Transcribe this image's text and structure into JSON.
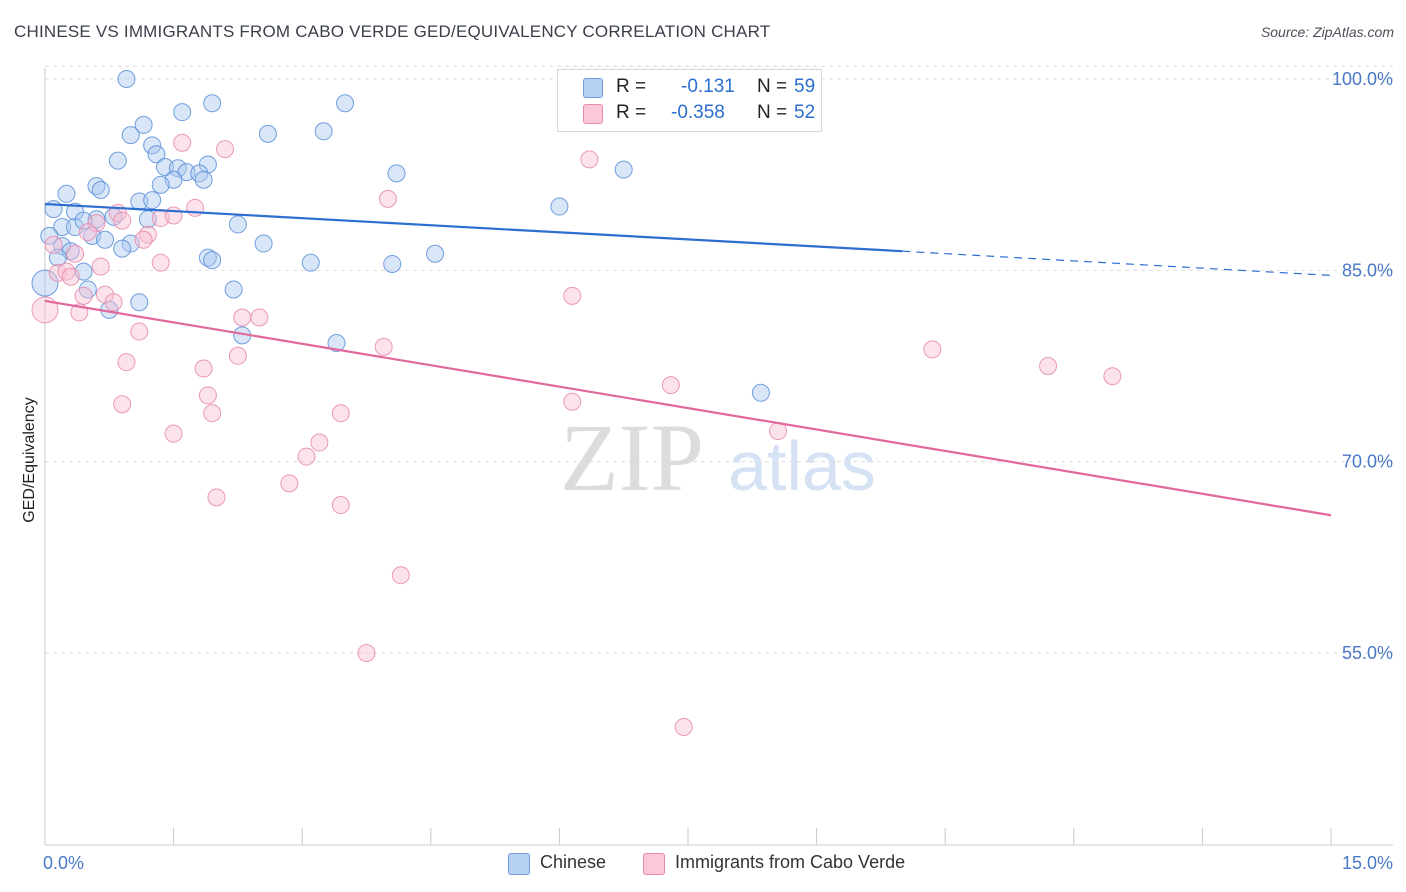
{
  "header": {
    "title": "CHINESE VS IMMIGRANTS FROM CABO VERDE GED/EQUIVALENCY CORRELATION CHART",
    "source": "Source: ZipAtlas.com"
  },
  "legend": {
    "r_label": "R =",
    "n_label": "N =",
    "series": [
      {
        "name": "Chinese",
        "r": "-0.131",
        "n": "59"
      },
      {
        "name": "Immigrants from Cabo Verde",
        "r": "-0.358",
        "n": "52"
      }
    ]
  },
  "watermark": {
    "zip": "ZIP",
    "atlas": "atlas"
  },
  "colors": {
    "blue_fill": "#a9c8f0",
    "blue_stroke": "#5b8fd8",
    "blue_line": "#2d6fd0",
    "pink_fill": "#f7bfd2",
    "pink_stroke": "#e88aab",
    "pink_line": "#e0689a",
    "axis_text": "#4a78c8"
  },
  "chart_data": {
    "type": "scatter",
    "title": "CHINESE VS IMMIGRANTS FROM CABO VERDE GED/EQUIVALENCY CORRELATION CHART",
    "xlabel": "",
    "ylabel": "GED/Equivalency",
    "xlim": [
      0,
      15
    ],
    "ylim": [
      40,
      101
    ],
    "x_ticks": [
      0,
      1.5,
      3,
      4.5,
      6,
      7.5,
      9,
      10.5,
      12,
      13.5,
      15
    ],
    "x_tick_labels": {
      "0": "0.0%",
      "15": "15.0%"
    },
    "y_ticks": [
      55,
      70,
      85,
      100
    ],
    "y_tick_labels": [
      "55.0%",
      "70.0%",
      "85.0%",
      "100.0%"
    ],
    "grid": true,
    "series": [
      {
        "name": "Chinese",
        "color": "blue",
        "points": [
          [
            0.95,
            100.0
          ],
          [
            1.95,
            98.1
          ],
          [
            3.5,
            98.1
          ],
          [
            1.6,
            97.4
          ],
          [
            1.15,
            96.4
          ],
          [
            2.6,
            95.7
          ],
          [
            3.25,
            95.9
          ],
          [
            1.0,
            95.6
          ],
          [
            1.25,
            94.8
          ],
          [
            1.3,
            94.1
          ],
          [
            0.85,
            93.6
          ],
          [
            1.9,
            93.3
          ],
          [
            1.4,
            93.1
          ],
          [
            1.55,
            93.0
          ],
          [
            1.65,
            92.7
          ],
          [
            1.8,
            92.6
          ],
          [
            4.1,
            92.6
          ],
          [
            6.75,
            92.9
          ],
          [
            1.5,
            92.1
          ],
          [
            1.85,
            92.1
          ],
          [
            1.35,
            91.7
          ],
          [
            0.6,
            91.6
          ],
          [
            0.65,
            91.3
          ],
          [
            0.25,
            91.0
          ],
          [
            1.1,
            90.4
          ],
          [
            6.0,
            90.0
          ],
          [
            0.1,
            89.8
          ],
          [
            0.35,
            89.6
          ],
          [
            0.6,
            89.0
          ],
          [
            0.8,
            89.2
          ],
          [
            1.2,
            89.0
          ],
          [
            2.25,
            88.6
          ],
          [
            0.2,
            88.4
          ],
          [
            0.35,
            88.4
          ],
          [
            0.05,
            87.7
          ],
          [
            0.55,
            87.7
          ],
          [
            0.7,
            87.4
          ],
          [
            0.2,
            86.9
          ],
          [
            1.0,
            87.1
          ],
          [
            2.55,
            87.1
          ],
          [
            0.3,
            86.5
          ],
          [
            0.9,
            86.7
          ],
          [
            4.55,
            86.3
          ],
          [
            1.9,
            86.0
          ],
          [
            1.95,
            85.8
          ],
          [
            3.1,
            85.6
          ],
          [
            4.05,
            85.5
          ],
          [
            0.45,
            84.9
          ],
          [
            0.0,
            84.0
          ],
          [
            0.5,
            83.5
          ],
          [
            2.2,
            83.5
          ],
          [
            1.1,
            82.5
          ],
          [
            0.75,
            81.9
          ],
          [
            2.3,
            79.9
          ],
          [
            3.4,
            79.3
          ],
          [
            8.35,
            75.4
          ],
          [
            0.15,
            86.0
          ],
          [
            1.25,
            90.5
          ],
          [
            0.45,
            88.9
          ]
        ]
      },
      {
        "name": "Immigrants from Cabo Verde",
        "color": "pink",
        "points": [
          [
            1.6,
            95.0
          ],
          [
            2.1,
            94.5
          ],
          [
            6.35,
            93.7
          ],
          [
            4.0,
            90.6
          ],
          [
            1.75,
            89.9
          ],
          [
            0.85,
            89.5
          ],
          [
            1.35,
            89.1
          ],
          [
            1.5,
            89.3
          ],
          [
            0.6,
            88.7
          ],
          [
            0.9,
            88.9
          ],
          [
            0.5,
            88.0
          ],
          [
            1.2,
            87.8
          ],
          [
            1.15,
            87.4
          ],
          [
            0.1,
            87.0
          ],
          [
            1.35,
            85.6
          ],
          [
            0.65,
            85.3
          ],
          [
            0.15,
            84.8
          ],
          [
            0.25,
            84.9
          ],
          [
            0.3,
            84.5
          ],
          [
            0.45,
            83.0
          ],
          [
            0.7,
            83.1
          ],
          [
            6.15,
            83.0
          ],
          [
            0.8,
            82.5
          ],
          [
            0.0,
            81.9
          ],
          [
            0.4,
            81.7
          ],
          [
            2.3,
            81.3
          ],
          [
            2.5,
            81.3
          ],
          [
            1.1,
            80.2
          ],
          [
            3.95,
            79.0
          ],
          [
            10.35,
            78.8
          ],
          [
            2.25,
            78.3
          ],
          [
            0.95,
            77.8
          ],
          [
            1.85,
            77.3
          ],
          [
            11.7,
            77.5
          ],
          [
            12.45,
            76.7
          ],
          [
            7.3,
            76.0
          ],
          [
            1.9,
            75.2
          ],
          [
            6.15,
            74.7
          ],
          [
            0.9,
            74.5
          ],
          [
            1.95,
            73.8
          ],
          [
            3.45,
            73.8
          ],
          [
            8.55,
            72.4
          ],
          [
            1.5,
            72.2
          ],
          [
            3.2,
            71.5
          ],
          [
            3.05,
            70.4
          ],
          [
            2.85,
            68.3
          ],
          [
            2.0,
            67.2
          ],
          [
            3.45,
            66.6
          ],
          [
            4.15,
            61.1
          ],
          [
            3.75,
            55.0
          ],
          [
            7.45,
            49.2
          ],
          [
            0.35,
            86.3
          ]
        ]
      }
    ],
    "trend_lines": [
      {
        "series": "Chinese",
        "solid": [
          [
            0,
            90.2
          ],
          [
            10.0,
            86.5
          ]
        ],
        "dashed": [
          [
            10.0,
            86.5
          ],
          [
            15,
            84.6
          ]
        ]
      },
      {
        "series": "Immigrants from Cabo Verde",
        "solid": [
          [
            0,
            82.6
          ],
          [
            15,
            65.8
          ]
        ]
      }
    ],
    "legend_position": "top-center"
  }
}
